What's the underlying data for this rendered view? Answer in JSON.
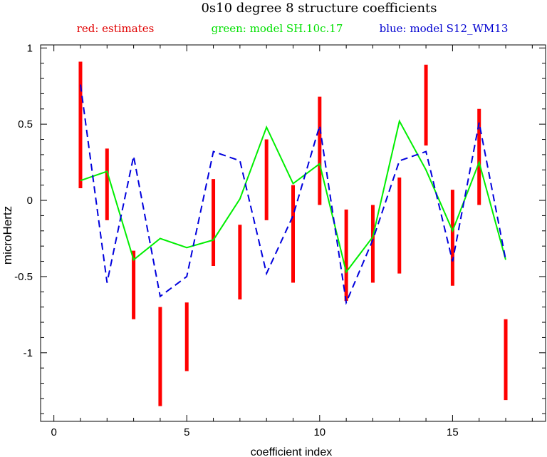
{
  "chart_data": {
    "type": "line",
    "title": "0s10 degree 8 structure coefficients",
    "xlabel": "coefficient index",
    "ylabel": "microHertz",
    "xlim": [
      -0.5,
      18.5
    ],
    "ylim": [
      -1.45,
      1.02
    ],
    "xticks": [
      0,
      5,
      10,
      15
    ],
    "yticks": [
      1,
      0.5,
      0,
      -0.5,
      -1
    ],
    "ytick_labels": [
      "1",
      "0.5",
      "0",
      "-0.5",
      "-1"
    ],
    "legend": [
      {
        "label": "red: estimates",
        "color": "#e00000"
      },
      {
        "label": "green: model SH.10c.17",
        "color": "#00e000"
      },
      {
        "label": "blue: model S12_WM13",
        "color": "#0000d0"
      }
    ],
    "estimates": {
      "name": "estimates",
      "color": "#ff0000",
      "x": [
        1,
        2,
        3,
        4,
        5,
        6,
        7,
        8,
        9,
        10,
        11,
        12,
        13,
        14,
        15,
        16,
        17
      ],
      "low": [
        0.08,
        -0.13,
        -0.78,
        -1.35,
        -1.12,
        -0.43,
        -0.65,
        -0.13,
        -0.54,
        -0.03,
        -0.66,
        -0.54,
        -0.48,
        0.36,
        -0.56,
        -0.03,
        -1.31
      ],
      "high": [
        0.91,
        0.34,
        -0.33,
        -0.7,
        -0.67,
        0.14,
        -0.16,
        0.4,
        0.1,
        0.68,
        -0.06,
        -0.03,
        0.15,
        0.89,
        0.07,
        0.6,
        -0.78
      ]
    },
    "series": [
      {
        "name": "model SH.10c.17",
        "color": "#00ee00",
        "dash": "solid",
        "x": [
          1,
          2,
          3,
          4,
          5,
          6,
          7,
          8,
          9,
          10,
          11,
          12,
          13,
          14,
          15,
          16,
          17
        ],
        "values": [
          0.13,
          0.19,
          -0.39,
          -0.25,
          -0.31,
          -0.26,
          0.01,
          0.48,
          0.11,
          0.24,
          -0.47,
          -0.24,
          0.52,
          0.2,
          -0.2,
          0.25,
          -0.39
        ]
      },
      {
        "name": "model S12_WM13",
        "color": "#0000dd",
        "dash": "dashed",
        "x": [
          1,
          2,
          3,
          4,
          5,
          6,
          7,
          8,
          9,
          10,
          11,
          12,
          13,
          14,
          15,
          16,
          17
        ],
        "values": [
          0.76,
          -0.54,
          0.29,
          -0.63,
          -0.5,
          0.32,
          0.26,
          -0.48,
          -0.1,
          0.49,
          -0.67,
          -0.26,
          0.26,
          0.32,
          -0.4,
          0.51,
          -0.39
        ]
      }
    ]
  }
}
